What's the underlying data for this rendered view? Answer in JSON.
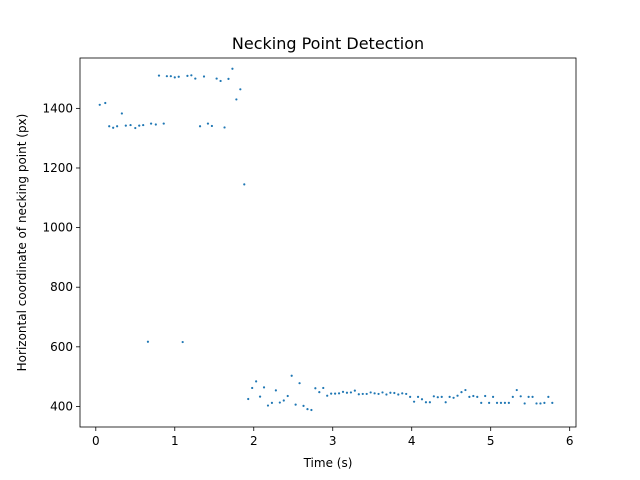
{
  "chart_data": {
    "type": "scatter",
    "title": "Necking Point Detection",
    "xlabel": "Time (s)",
    "ylabel": "Horizontal coordinate of necking point (px)",
    "xlim": [
      -0.2,
      6.08
    ],
    "ylim": [
      331,
      1569
    ],
    "xticks": [
      0,
      1,
      2,
      3,
      4,
      5,
      6
    ],
    "yticks": [
      400,
      600,
      800,
      1000,
      1200,
      1400
    ],
    "grid": false,
    "marker_color": "#1f77b4",
    "series": [
      {
        "x": [
          0.05,
          0.12,
          0.17,
          0.22,
          0.27,
          0.33,
          0.38,
          0.44,
          0.5,
          0.55,
          0.6,
          0.66,
          0.7,
          0.76,
          0.8,
          0.86,
          0.9,
          0.95,
          1.0,
          1.05,
          1.1,
          1.16,
          1.21,
          1.26,
          1.32,
          1.37,
          1.42,
          1.47,
          1.53,
          1.58,
          1.63,
          1.68,
          1.73,
          1.78,
          1.83,
          1.88,
          1.93,
          1.98,
          2.03,
          2.08,
          2.13,
          2.18,
          2.23,
          2.28,
          2.33,
          2.38,
          2.43,
          2.48,
          2.53,
          2.58,
          2.63,
          2.68,
          2.73,
          2.78,
          2.83,
          2.88,
          2.93,
          2.98,
          3.03,
          3.08,
          3.13,
          3.18,
          3.23,
          3.28,
          3.33,
          3.38,
          3.43,
          3.48,
          3.53,
          3.58,
          3.63,
          3.68,
          3.73,
          3.78,
          3.83,
          3.88,
          3.93,
          3.98,
          4.03,
          4.08,
          4.13,
          4.18,
          4.23,
          4.28,
          4.33,
          4.38,
          4.43,
          4.48,
          4.53,
          4.58,
          4.63,
          4.68,
          4.73,
          4.78,
          4.83,
          4.88,
          4.93,
          4.98,
          5.03,
          5.08,
          5.13,
          5.18,
          5.23,
          5.28,
          5.33,
          5.38,
          5.43,
          5.48,
          5.53,
          5.58,
          5.63,
          5.68,
          5.73,
          5.78
        ],
        "y": [
          1412,
          1418,
          1340,
          1335,
          1340,
          1383,
          1342,
          1344,
          1334,
          1342,
          1344,
          617,
          1349,
          1346,
          1510,
          1349,
          1508,
          1508,
          1504,
          1506,
          616,
          1509,
          1511,
          1500,
          1340,
          1507,
          1349,
          1341,
          1500,
          1492,
          1336,
          1499,
          1533,
          1430,
          1464,
          1145,
          425,
          462,
          484,
          433,
          464,
          403,
          412,
          454,
          413,
          420,
          435,
          503,
          406,
          478,
          402,
          391,
          388,
          461,
          448,
          462,
          436,
          443,
          443,
          444,
          449,
          446,
          447,
          453,
          441,
          442,
          442,
          447,
          444,
          442,
          447,
          440,
          446,
          445,
          440,
          444,
          442,
          432,
          416,
          432,
          424,
          414,
          414,
          434,
          431,
          432,
          414,
          432,
          429,
          436,
          448,
          455,
          432,
          435,
          432,
          412,
          435,
          412,
          432,
          412,
          412,
          412,
          412,
          432,
          455,
          434,
          410,
          432,
          432,
          410,
          410,
          412,
          432,
          412
        ]
      }
    ]
  }
}
